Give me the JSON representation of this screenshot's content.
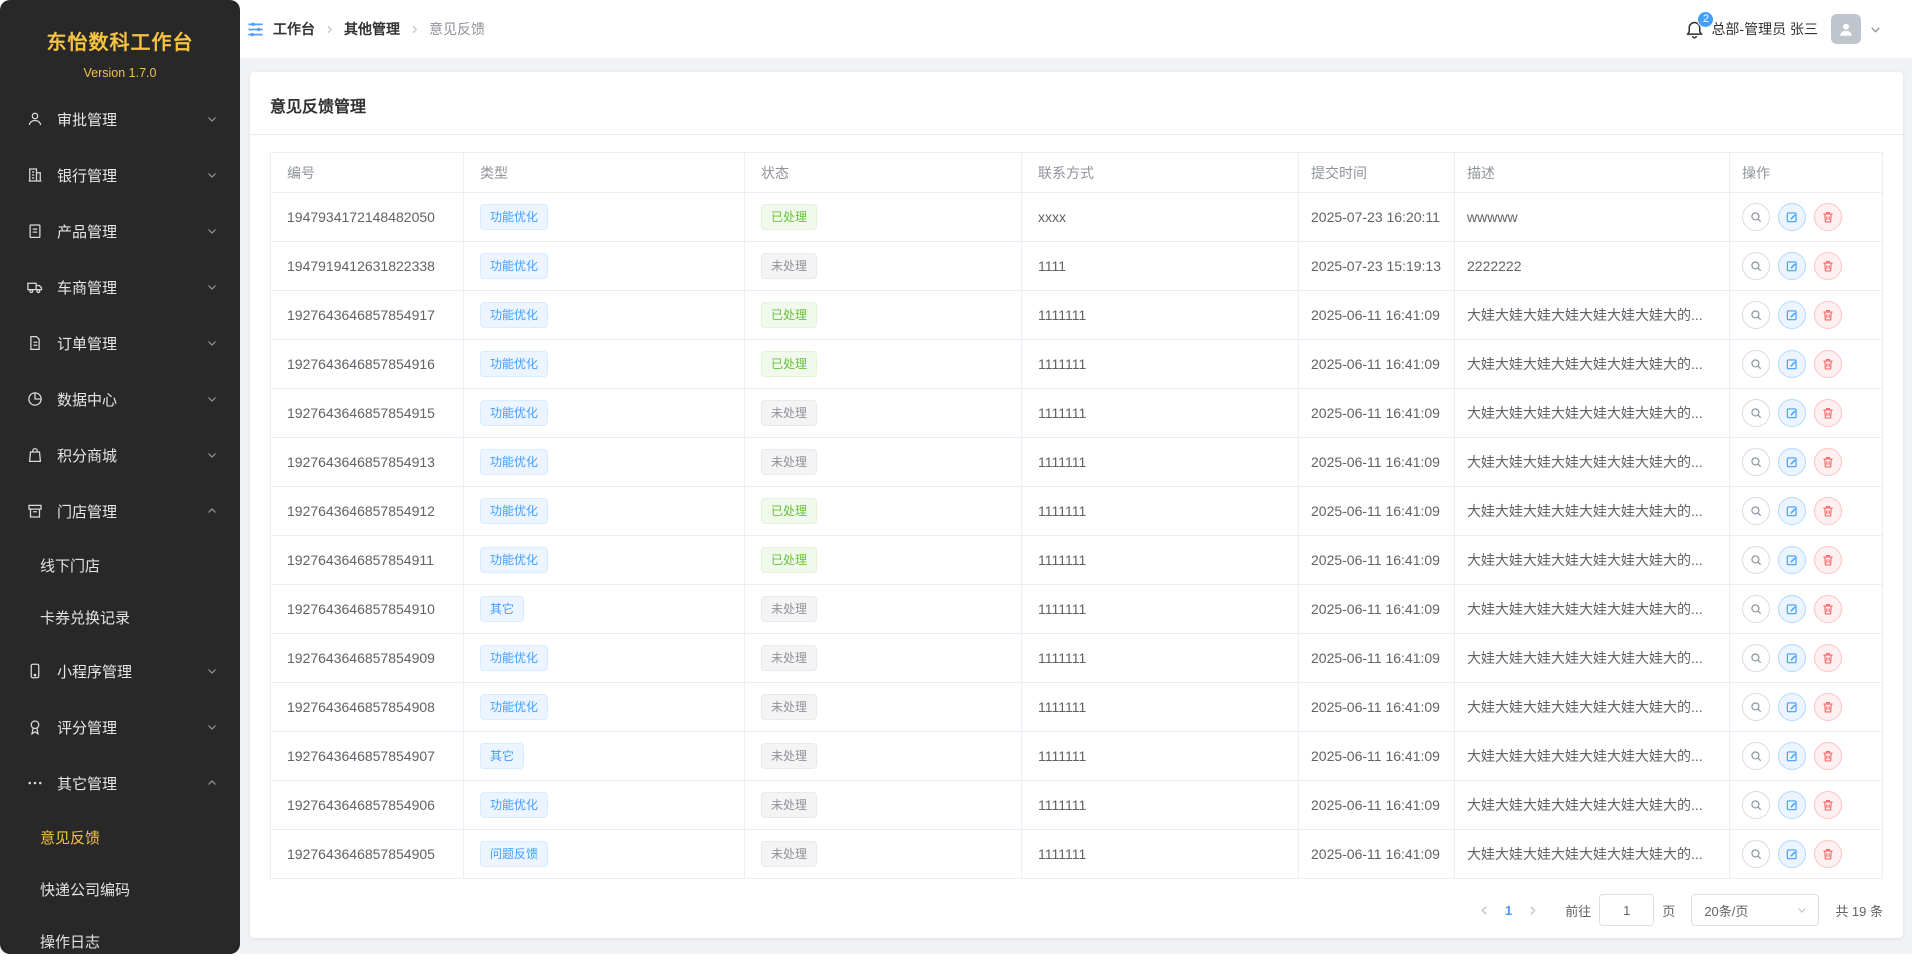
{
  "colors": {
    "accent_blue": "#409eff",
    "sidebar_gold": "#f5c242",
    "success_green": "#67c23a",
    "danger_red": "#f56c6c",
    "info_gray": "#909399"
  },
  "sidebar": {
    "title": "东怡数科工作台",
    "version": "Version 1.7.0",
    "items": [
      {
        "label": "审批管理",
        "icon": "user-icon",
        "expanded": false
      },
      {
        "label": "银行管理",
        "icon": "bank-icon",
        "expanded": false
      },
      {
        "label": "产品管理",
        "icon": "clipboard-icon",
        "expanded": false
      },
      {
        "label": "车商管理",
        "icon": "truck-icon",
        "expanded": false
      },
      {
        "label": "订单管理",
        "icon": "document-icon",
        "expanded": false
      },
      {
        "label": "数据中心",
        "icon": "pie-chart-icon",
        "expanded": false
      },
      {
        "label": "积分商城",
        "icon": "shopping-bag-icon",
        "expanded": false
      },
      {
        "label": "门店管理",
        "icon": "store-icon",
        "expanded": true,
        "children": [
          "线下门店",
          "卡券兑换记录"
        ]
      },
      {
        "label": "小程序管理",
        "icon": "mobile-icon",
        "expanded": false
      },
      {
        "label": "评分管理",
        "icon": "medal-icon",
        "expanded": false
      },
      {
        "label": "其它管理",
        "icon": "ellipsis-icon",
        "expanded": true,
        "children": [
          "意见反馈",
          "快递公司编码",
          "操作日志"
        ],
        "active_child": "意见反馈"
      }
    ]
  },
  "header": {
    "breadcrumb": [
      "工作台",
      "其他管理",
      "意见反馈"
    ],
    "breadcrumb_icon": "sliders-icon",
    "notification_icon": "bell-icon",
    "notification_count": "2",
    "user_name": "总部-管理员 张三"
  },
  "page": {
    "title": "意见反馈管理"
  },
  "table": {
    "columns": [
      "编号",
      "类型",
      "状态",
      "联系方式",
      "提交时间",
      "描述",
      "操作"
    ],
    "action_icons": [
      "search-icon",
      "edit-icon",
      "trash-icon"
    ],
    "rows": [
      {
        "id": "1947934172148482050",
        "type": "功能优化",
        "status": "已处理",
        "status_state": "done",
        "contact": "xxxx",
        "time": "2025-07-23 16:20:11",
        "desc": "wwwww"
      },
      {
        "id": "1947919412631822338",
        "type": "功能优化",
        "status": "未处理",
        "status_state": "pending",
        "contact": "1111",
        "time": "2025-07-23 15:19:13",
        "desc": "2222222"
      },
      {
        "id": "1927643646857854917",
        "type": "功能优化",
        "status": "已处理",
        "status_state": "done",
        "contact": "1111111",
        "time": "2025-06-11 16:41:09",
        "desc": "大娃大娃大娃大娃大娃大娃大娃大的..."
      },
      {
        "id": "1927643646857854916",
        "type": "功能优化",
        "status": "已处理",
        "status_state": "done",
        "contact": "1111111",
        "time": "2025-06-11 16:41:09",
        "desc": "大娃大娃大娃大娃大娃大娃大娃大的..."
      },
      {
        "id": "1927643646857854915",
        "type": "功能优化",
        "status": "未处理",
        "status_state": "pending",
        "contact": "1111111",
        "time": "2025-06-11 16:41:09",
        "desc": "大娃大娃大娃大娃大娃大娃大娃大的..."
      },
      {
        "id": "1927643646857854913",
        "type": "功能优化",
        "status": "未处理",
        "status_state": "pending",
        "contact": "1111111",
        "time": "2025-06-11 16:41:09",
        "desc": "大娃大娃大娃大娃大娃大娃大娃大的..."
      },
      {
        "id": "1927643646857854912",
        "type": "功能优化",
        "status": "已处理",
        "status_state": "done",
        "contact": "1111111",
        "time": "2025-06-11 16:41:09",
        "desc": "大娃大娃大娃大娃大娃大娃大娃大的..."
      },
      {
        "id": "1927643646857854911",
        "type": "功能优化",
        "status": "已处理",
        "status_state": "done",
        "contact": "1111111",
        "time": "2025-06-11 16:41:09",
        "desc": "大娃大娃大娃大娃大娃大娃大娃大的..."
      },
      {
        "id": "1927643646857854910",
        "type": "其它",
        "status": "未处理",
        "status_state": "pending",
        "contact": "1111111",
        "time": "2025-06-11 16:41:09",
        "desc": "大娃大娃大娃大娃大娃大娃大娃大的..."
      },
      {
        "id": "1927643646857854909",
        "type": "功能优化",
        "status": "未处理",
        "status_state": "pending",
        "contact": "1111111",
        "time": "2025-06-11 16:41:09",
        "desc": "大娃大娃大娃大娃大娃大娃大娃大的..."
      },
      {
        "id": "1927643646857854908",
        "type": "功能优化",
        "status": "未处理",
        "status_state": "pending",
        "contact": "1111111",
        "time": "2025-06-11 16:41:09",
        "desc": "大娃大娃大娃大娃大娃大娃大娃大的..."
      },
      {
        "id": "1927643646857854907",
        "type": "其它",
        "status": "未处理",
        "status_state": "pending",
        "contact": "1111111",
        "time": "2025-06-11 16:41:09",
        "desc": "大娃大娃大娃大娃大娃大娃大娃大的..."
      },
      {
        "id": "1927643646857854906",
        "type": "功能优化",
        "status": "未处理",
        "status_state": "pending",
        "contact": "1111111",
        "time": "2025-06-11 16:41:09",
        "desc": "大娃大娃大娃大娃大娃大娃大娃大的..."
      },
      {
        "id": "1927643646857854905",
        "type": "问题反馈",
        "status": "未处理",
        "status_state": "pending",
        "contact": "1111111",
        "time": "2025-06-11 16:41:09",
        "desc": "大娃大娃大娃大娃大娃大娃大娃大的..."
      }
    ]
  },
  "pagination": {
    "prev_icon": "chevron-left-icon",
    "next_icon": "chevron-right-icon",
    "current_page": "1",
    "goto_label": "前往",
    "goto_value": "1",
    "page_label": "页",
    "page_size": "20条/页",
    "total": "共 19 条"
  }
}
